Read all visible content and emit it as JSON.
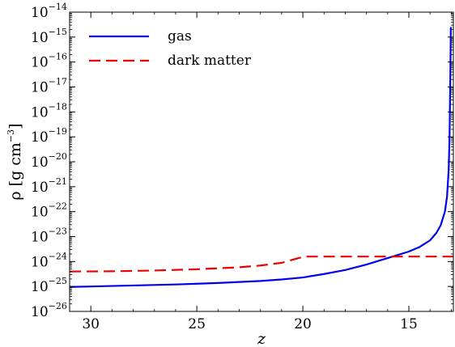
{
  "chart_data": {
    "type": "line",
    "xlabel": "z",
    "ylabel": "ρ [g cm",
    "ylabel_unit_exp": "−3",
    "ylabel_close": "]",
    "x_reversed": true,
    "xlim": [
      31,
      12.9
    ],
    "y_log": true,
    "ylim_exp": [
      -26,
      -14
    ],
    "grid": false,
    "legend_position": "top-left",
    "x_ticks": [
      {
        "value": 30,
        "label": "30"
      },
      {
        "value": 25,
        "label": "25"
      },
      {
        "value": 20,
        "label": "20"
      },
      {
        "value": 15,
        "label": "15"
      }
    ],
    "y_ticks": [
      {
        "exp": -26,
        "base": "10",
        "exp_label": "−26"
      },
      {
        "exp": -25,
        "base": "10",
        "exp_label": "−25"
      },
      {
        "exp": -24,
        "base": "10",
        "exp_label": "−24"
      },
      {
        "exp": -23,
        "base": "10",
        "exp_label": "−23"
      },
      {
        "exp": -22,
        "base": "10",
        "exp_label": "−22"
      },
      {
        "exp": -21,
        "base": "10",
        "exp_label": "−21"
      },
      {
        "exp": -20,
        "base": "10",
        "exp_label": "−20"
      },
      {
        "exp": -19,
        "base": "10",
        "exp_label": "−19"
      },
      {
        "exp": -18,
        "base": "10",
        "exp_label": "−18"
      },
      {
        "exp": -17,
        "base": "10",
        "exp_label": "−17"
      },
      {
        "exp": -16,
        "base": "10",
        "exp_label": "−16"
      },
      {
        "exp": -15,
        "base": "10",
        "exp_label": "−15"
      },
      {
        "exp": -14,
        "base": "10",
        "exp_label": "−14"
      }
    ],
    "series": [
      {
        "name": "gas",
        "color": "#0000ee",
        "dash": "solid",
        "points": [
          [
            31,
            -25.02
          ],
          [
            30,
            -25.0
          ],
          [
            28,
            -24.96
          ],
          [
            26,
            -24.92
          ],
          [
            24,
            -24.86
          ],
          [
            22,
            -24.78
          ],
          [
            21,
            -24.72
          ],
          [
            20,
            -24.64
          ],
          [
            19,
            -24.5
          ],
          [
            18,
            -24.34
          ],
          [
            17,
            -24.12
          ],
          [
            16,
            -23.86
          ],
          [
            15,
            -23.6
          ],
          [
            14.5,
            -23.42
          ],
          [
            14,
            -23.15
          ],
          [
            13.7,
            -22.85
          ],
          [
            13.5,
            -22.55
          ],
          [
            13.3,
            -22.0
          ],
          [
            13.2,
            -21.4
          ],
          [
            13.12,
            -20.3
          ],
          [
            13.08,
            -19.0
          ],
          [
            13.05,
            -17.0
          ],
          [
            13.03,
            -15.5
          ],
          [
            13.02,
            -14.6
          ]
        ]
      },
      {
        "name": "dark matter",
        "color": "#ee0000",
        "dash": "dashed",
        "points": [
          [
            31,
            -24.4
          ],
          [
            29,
            -24.39
          ],
          [
            27,
            -24.36
          ],
          [
            25,
            -24.31
          ],
          [
            23,
            -24.23
          ],
          [
            22,
            -24.16
          ],
          [
            21,
            -24.05
          ],
          [
            20.2,
            -23.86
          ],
          [
            19.9,
            -23.8
          ],
          [
            17,
            -23.8
          ],
          [
            15,
            -23.8
          ],
          [
            12.9,
            -23.8
          ]
        ]
      }
    ]
  }
}
